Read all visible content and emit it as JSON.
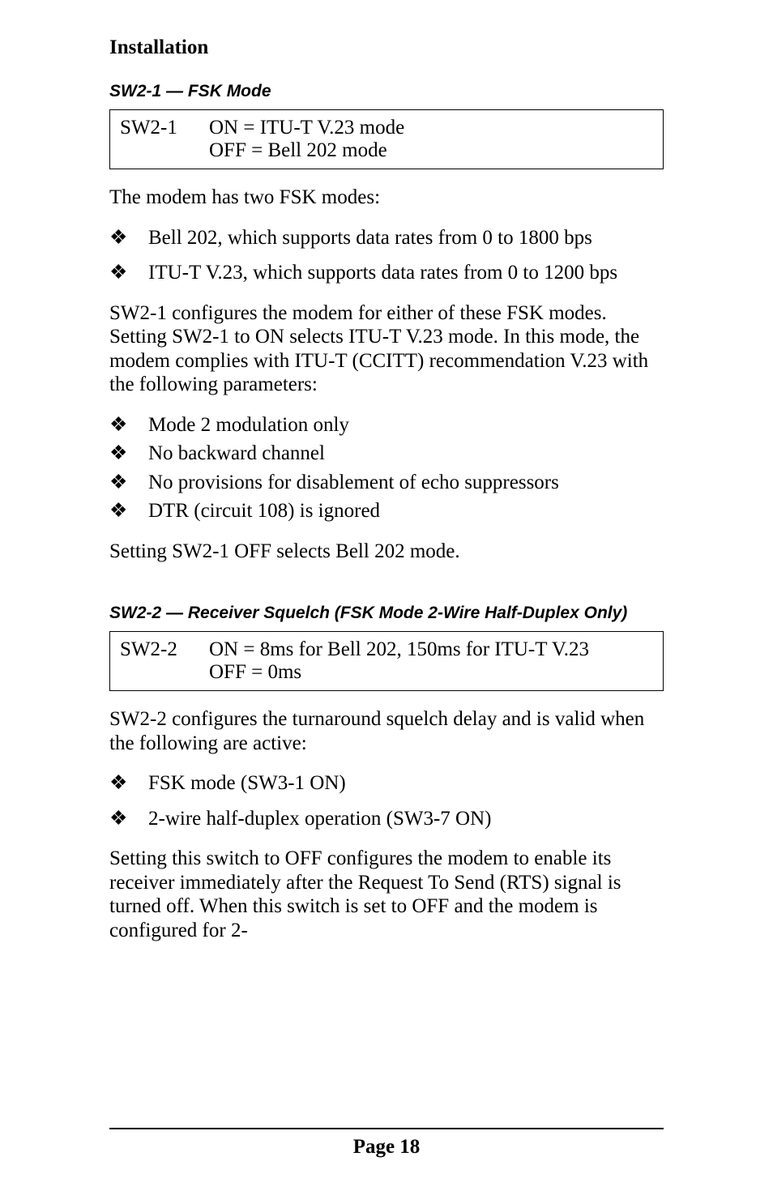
{
  "header": {
    "title": "Installation"
  },
  "section1": {
    "heading_prefix": "SW2-1",
    "heading_dash": " — ",
    "heading_suffix": "FSK Mode",
    "box": {
      "label": "SW2-1",
      "line1": "ON = ITU-T V.23 mode",
      "line2": "OFF = Bell 202 mode"
    },
    "para1": "The modem has two FSK modes:",
    "list1": {
      "item1": "Bell 202, which supports data rates from 0 to 1800 bps",
      "item2": "ITU-T V.23, which supports data rates from 0 to 1200 bps"
    },
    "para2": "SW2-1 configures the modem for either of these FSK modes. Setting SW2-1 to ON selects ITU-T V.23 mode. In this mode, the modem complies with ITU-T (CCITT) recommendation V.23 with the following parameters:",
    "list2": {
      "item1": "Mode 2 modulation only",
      "item2": "No backward channel",
      "item3": "No provisions for disablement of echo suppressors",
      "item4": "DTR (circuit 108) is ignored"
    },
    "para3": "Setting SW2-1 OFF selects Bell 202 mode."
  },
  "section2": {
    "heading_prefix": "SW2-2",
    "heading_dash": " — ",
    "heading_suffix": "Receiver Squelch (FSK Mode 2-Wire Half-Duplex Only)",
    "box": {
      "label": "SW2-2",
      "line1": "ON = 8ms for Bell 202, 150ms for ITU-T V.23",
      "line2": "OFF = 0ms"
    },
    "para1": "SW2-2 configures the turnaround squelch delay and is valid when the following are active:",
    "list1": {
      "item1": "FSK mode (SW3-1 ON)",
      "item2": "2-wire half-duplex operation (SW3-7 ON)"
    },
    "para2": "Setting this switch to OFF configures the modem to enable its receiver immediately after the Request To Send (RTS) signal is turned off. When this switch is set to OFF and the modem is configured for 2-"
  },
  "footer": {
    "page": "Page 18"
  },
  "bullet_char": "❖"
}
